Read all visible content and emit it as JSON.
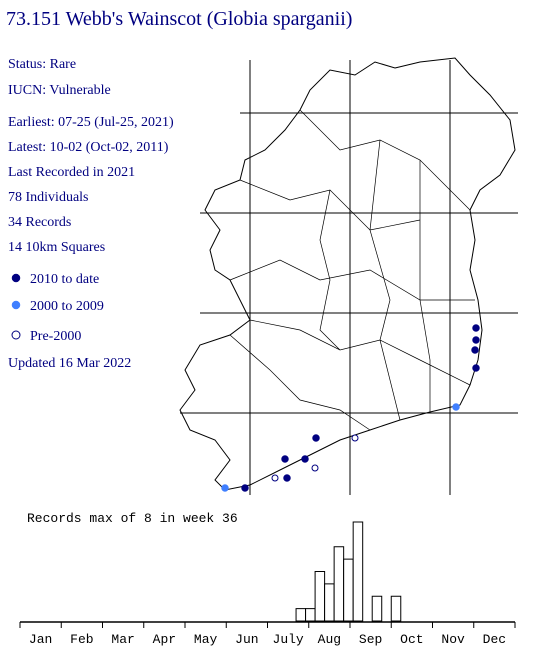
{
  "header": {
    "title": "73.151 Webb's Wainscot (Globia sparganii)"
  },
  "info": [
    "Status: Rare",
    "IUCN: Vulnerable",
    "Earliest: 07-25 (Jul-25, 2021)",
    "Latest: 10-02 (Oct-02, 2011)",
    "Last Recorded in 2021",
    "78 Individuals",
    "34 Records",
    "14 10km Squares"
  ],
  "legend": [
    {
      "label": "2010 to date",
      "color": "#000080",
      "open": false
    },
    {
      "label": "2000 to 2009",
      "color": "#3f7fff",
      "open": false
    },
    {
      "label": "Pre-2000",
      "color": "#000080",
      "open": true
    }
  ],
  "updated": "Updated 16 Mar 2022",
  "chart_data": {
    "type": "bar",
    "title": "Records max of 8 in week 36",
    "categories": [
      "Jan",
      "Feb",
      "Mar",
      "Apr",
      "May",
      "Jun",
      "July",
      "Aug",
      "Sep",
      "Oct",
      "Nov",
      "Dec"
    ],
    "x": [
      30,
      31,
      32,
      33,
      34,
      35,
      36,
      38,
      40
    ],
    "values": [
      1,
      1,
      4,
      3,
      6,
      5,
      8,
      2,
      2
    ],
    "xlim": [
      0,
      52
    ],
    "ylim": [
      0,
      8
    ]
  }
}
